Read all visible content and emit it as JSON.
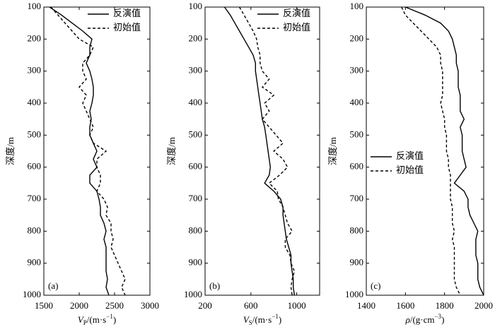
{
  "chart_data": [
    {
      "type": "line",
      "panel_label": "(a)",
      "ylabel": "深度/m",
      "xlabel": [
        {
          "text": "V",
          "style": "italic"
        },
        {
          "text": "P",
          "style": "sub"
        },
        {
          "text": "/(m·s"
        },
        {
          "text": "−1",
          "style": "sup"
        },
        {
          "text": ")"
        }
      ],
      "xlim": [
        1500,
        3000
      ],
      "xticks": [
        1500,
        2000,
        2500,
        3000
      ],
      "ylim": [
        100,
        1000
      ],
      "yticks": [
        100,
        200,
        300,
        400,
        500,
        600,
        700,
        800,
        900,
        1000
      ],
      "y_inverted": true,
      "legend": "upper right",
      "y": [
        100,
        125,
        150,
        175,
        200,
        225,
        250,
        275,
        300,
        325,
        350,
        375,
        400,
        425,
        450,
        475,
        500,
        525,
        550,
        575,
        600,
        625,
        650,
        675,
        700,
        725,
        750,
        775,
        800,
        825,
        850,
        875,
        900,
        925,
        950,
        975,
        1000
      ],
      "series": [
        {
          "name": "反演值",
          "color": "#000000",
          "linestyle": "solid",
          "values": [
            1580,
            1750,
            1900,
            2050,
            2180,
            2150,
            2150,
            2100,
            2150,
            2180,
            2200,
            2200,
            2180,
            2150,
            2170,
            2150,
            2150,
            2200,
            2250,
            2200,
            2250,
            2150,
            2150,
            2250,
            2280,
            2300,
            2300,
            2350,
            2380,
            2350,
            2380,
            2380,
            2380,
            2380,
            2400,
            2380,
            2420
          ]
        },
        {
          "name": "初始值",
          "color": "#000000",
          "linestyle": "dashed",
          "values": [
            1600,
            1700,
            1800,
            1900,
            2000,
            2200,
            2150,
            2050,
            2050,
            2100,
            2000,
            2100,
            2050,
            2100,
            2150,
            2200,
            2150,
            2200,
            2380,
            2250,
            2250,
            2300,
            2300,
            2250,
            2350,
            2400,
            2380,
            2450,
            2450,
            2480,
            2450,
            2500,
            2550,
            2600,
            2650,
            2600,
            2650
          ]
        }
      ]
    },
    {
      "type": "line",
      "panel_label": "(b)",
      "ylabel": "深度/m",
      "xlabel": [
        {
          "text": "V",
          "style": "italic"
        },
        {
          "text": "S",
          "style": "sub"
        },
        {
          "text": "/(m·s"
        },
        {
          "text": "−1",
          "style": "sup"
        },
        {
          "text": ")"
        }
      ],
      "xlim": [
        200,
        1200
      ],
      "xticks": [
        200,
        600,
        1000
      ],
      "ylim": [
        100,
        1000
      ],
      "yticks": [
        100,
        200,
        300,
        400,
        500,
        600,
        700,
        800,
        900,
        1000
      ],
      "y_inverted": true,
      "legend": "upper right",
      "y": [
        100,
        125,
        150,
        175,
        200,
        225,
        250,
        275,
        300,
        325,
        350,
        375,
        400,
        425,
        450,
        475,
        500,
        525,
        550,
        575,
        600,
        625,
        650,
        675,
        700,
        725,
        750,
        775,
        800,
        825,
        850,
        875,
        900,
        925,
        950,
        975,
        1000
      ],
      "series": [
        {
          "name": "反演值",
          "color": "#000000",
          "linestyle": "solid",
          "values": [
            370,
            420,
            460,
            500,
            540,
            580,
            620,
            640,
            640,
            650,
            660,
            670,
            680,
            690,
            700,
            720,
            730,
            740,
            750,
            760,
            770,
            760,
            720,
            800,
            860,
            880,
            880,
            890,
            900,
            910,
            930,
            950,
            950,
            960,
            970,
            970,
            980
          ]
        },
        {
          "name": "初始值",
          "color": "#000000",
          "linestyle": "dashed",
          "values": [
            500,
            540,
            580,
            620,
            650,
            660,
            680,
            680,
            700,
            760,
            700,
            800,
            720,
            760,
            700,
            760,
            820,
            880,
            800,
            880,
            920,
            850,
            760,
            830,
            840,
            880,
            900,
            920,
            960,
            900,
            900,
            940,
            950,
            980,
            960,
            950,
            960
          ]
        }
      ]
    },
    {
      "type": "line",
      "panel_label": "(c)",
      "ylabel": "深度/m",
      "xlabel": [
        {
          "text": "ρ",
          "style": "italic"
        },
        {
          "text": "/(g·cm"
        },
        {
          "text": "−3",
          "style": "sup"
        },
        {
          "text": ")"
        }
      ],
      "xlim": [
        1400,
        2000
      ],
      "xticks": [
        1400,
        1600,
        1800,
        2000
      ],
      "ylim": [
        100,
        1000
      ],
      "yticks": [
        100,
        200,
        300,
        400,
        500,
        600,
        700,
        800,
        900,
        1000
      ],
      "y_inverted": true,
      "legend": "upper left",
      "y": [
        100,
        125,
        150,
        175,
        200,
        225,
        250,
        275,
        300,
        325,
        350,
        375,
        400,
        425,
        450,
        475,
        500,
        525,
        550,
        575,
        600,
        625,
        650,
        675,
        700,
        725,
        750,
        775,
        800,
        825,
        850,
        875,
        900,
        925,
        950,
        975,
        1000
      ],
      "series": [
        {
          "name": "反演值",
          "color": "#000000",
          "linestyle": "solid",
          "values": [
            1600,
            1700,
            1780,
            1820,
            1840,
            1850,
            1860,
            1860,
            1870,
            1870,
            1870,
            1880,
            1880,
            1880,
            1900,
            1880,
            1890,
            1890,
            1890,
            1900,
            1910,
            1880,
            1850,
            1900,
            1920,
            1920,
            1930,
            1950,
            1970,
            1960,
            1960,
            1960,
            1970,
            1970,
            1970,
            1980,
            2000
          ]
        },
        {
          "name": "初始值",
          "color": "#000000",
          "linestyle": "dashed",
          "values": [
            1580,
            1600,
            1640,
            1680,
            1720,
            1760,
            1780,
            1780,
            1790,
            1790,
            1790,
            1790,
            1780,
            1790,
            1800,
            1800,
            1810,
            1810,
            1810,
            1820,
            1820,
            1830,
            1830,
            1830,
            1830,
            1840,
            1840,
            1840,
            1850,
            1840,
            1850,
            1850,
            1850,
            1850,
            1850,
            1860,
            1880
          ]
        }
      ]
    }
  ]
}
